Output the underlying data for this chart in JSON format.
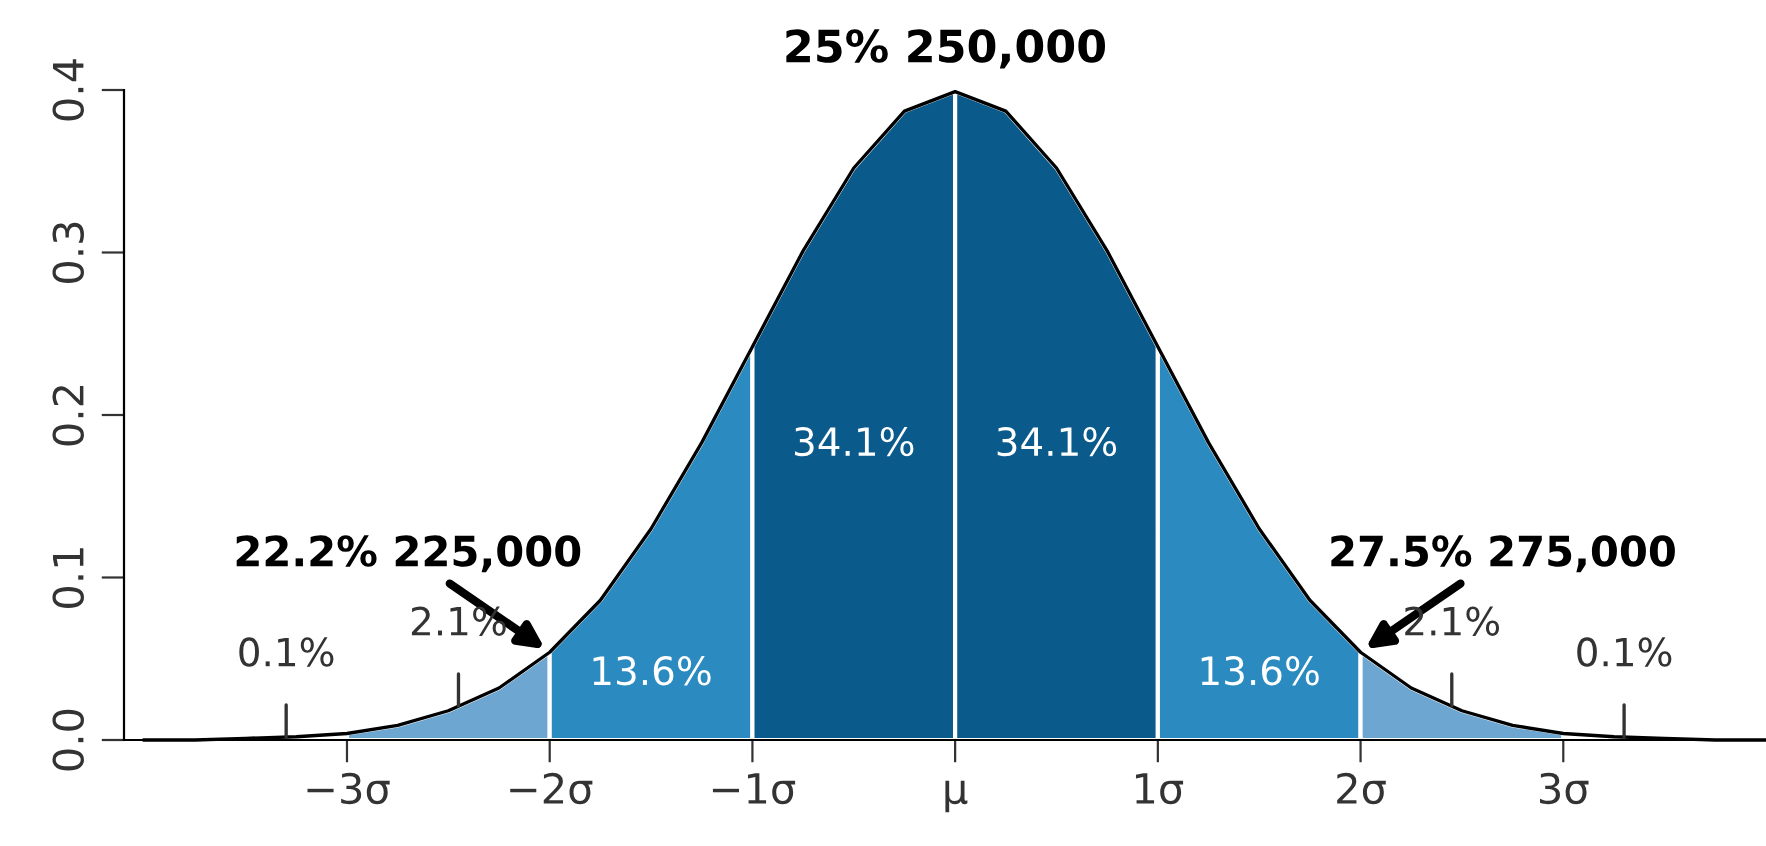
{
  "chart_data": {
    "type": "area",
    "title": "25% 250,000",
    "xlim": [
      -4.1,
      4.0
    ],
    "ylim": [
      0,
      0.4
    ],
    "xticks": [
      {
        "value": -3,
        "label": "−3σ"
      },
      {
        "value": -2,
        "label": "−2σ"
      },
      {
        "value": -1,
        "label": "−1σ"
      },
      {
        "value": 0,
        "label": "μ"
      },
      {
        "value": 1,
        "label": "1σ"
      },
      {
        "value": 2,
        "label": "2σ"
      },
      {
        "value": 3,
        "label": "3σ"
      }
    ],
    "yticks": [
      {
        "value": 0,
        "label": "0.0"
      },
      {
        "value": 0.1,
        "label": "0.1"
      },
      {
        "value": 0.2,
        "label": "0.2"
      },
      {
        "value": 0.3,
        "label": "0.3"
      },
      {
        "value": 0.4,
        "label": "0.4"
      }
    ],
    "grid": false,
    "legend": false,
    "series": [
      {
        "color": "#6ea6d2",
        "x": [
          -3,
          -2.75,
          -2.5,
          -2.25,
          -2
        ],
        "values": [
          0.004,
          0.009,
          0.018,
          0.032,
          0.054
        ]
      },
      {
        "name": "13.6%",
        "color": "#2b8bc0",
        "x": [
          -2,
          -1.75,
          -1.5,
          -1.25,
          -1
        ],
        "values": [
          0.054,
          0.086,
          0.13,
          0.183,
          0.242
        ]
      },
      {
        "name": "34.1%",
        "color": "#0b5a8c",
        "x": [
          -1,
          -0.75,
          -0.5,
          -0.25,
          0
        ],
        "values": [
          0.242,
          0.301,
          0.352,
          0.387,
          0.399
        ]
      },
      {
        "name": "34.1%",
        "color": "#0b5a8c",
        "x": [
          0,
          0.25,
          0.5,
          0.75,
          1
        ],
        "values": [
          0.399,
          0.387,
          0.352,
          0.301,
          0.242
        ]
      },
      {
        "name": "13.6%",
        "color": "#2b8bc0",
        "x": [
          1,
          1.25,
          1.5,
          1.75,
          2
        ],
        "values": [
          0.242,
          0.183,
          0.13,
          0.086,
          0.054
        ]
      },
      {
        "color": "#6ea6d2",
        "x": [
          2,
          2.25,
          2.5,
          2.75,
          3
        ],
        "values": [
          0.054,
          0.032,
          0.018,
          0.009,
          0.004
        ]
      },
      {
        "type": "line",
        "color": "#000000",
        "x": [
          -4,
          -3.75,
          -3.5,
          -3.25,
          -3,
          -2.75,
          -2.5,
          -2.25,
          -2,
          -1.75,
          -1.5,
          -1.25,
          -1,
          -0.75,
          -0.5,
          -0.25,
          0,
          0.25,
          0.5,
          0.75,
          1,
          1.25,
          1.5,
          1.75,
          2,
          2.25,
          2.5,
          2.75,
          3,
          3.25,
          3.5,
          3.75,
          4
        ],
        "values": [
          0.0,
          0.0,
          0.001,
          0.002,
          0.004,
          0.009,
          0.018,
          0.032,
          0.054,
          0.086,
          0.13,
          0.183,
          0.242,
          0.301,
          0.352,
          0.387,
          0.399,
          0.387,
          0.352,
          0.301,
          0.242,
          0.183,
          0.13,
          0.086,
          0.054,
          0.032,
          0.018,
          0.009,
          0.004,
          0.002,
          0.001,
          0.0,
          0.0
        ]
      }
    ],
    "annotations": [
      {
        "text": "22.2% 225,000",
        "x": -2,
        "y": 0.054
      },
      {
        "text": "27.5% 275,000",
        "x": 2,
        "y": 0.054
      },
      {
        "text": "2.1%",
        "x": -2.45,
        "y": 0.021
      },
      {
        "text": "2.1%",
        "x": 2.45,
        "y": 0.021
      },
      {
        "text": "0.1%",
        "x": -3.3,
        "y": 0.002
      },
      {
        "text": "0.1%",
        "x": 3.3,
        "y": 0.002
      }
    ]
  }
}
